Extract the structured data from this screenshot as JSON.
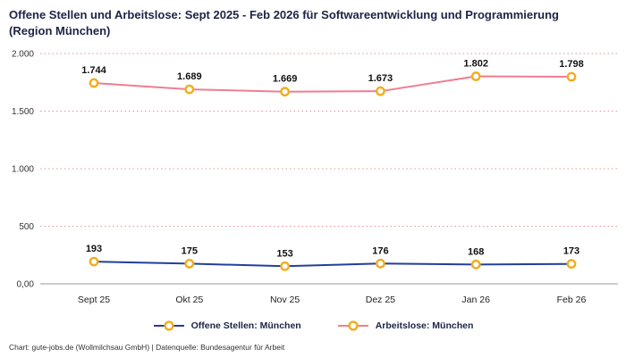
{
  "title": "Offene Stellen und Arbeitslose: Sept 2025 - Feb 2026 für Softwareentwicklung und Programmierung (Region München)",
  "footer": "Chart: gute-jobs.de (Wollmilchsau GmbH) | Datenquelle: Bundesagentur für Arbeit",
  "colors": {
    "title": "#1d2346",
    "marker": "#f0ad1e",
    "grid": "#e59595",
    "axis": "#999999",
    "tick_text": "#333333",
    "label_text": "#111111"
  },
  "chart_data": {
    "type": "line",
    "categories": [
      "Sept 25",
      "Okt 25",
      "Nov 25",
      "Dez 25",
      "Jan 26",
      "Feb 26"
    ],
    "series": [
      {
        "name": "Offene Stellen: München",
        "color": "#223f9a",
        "values": [
          193,
          175,
          153,
          176,
          168,
          173
        ],
        "labels": [
          "193",
          "175",
          "153",
          "176",
          "168",
          "173"
        ]
      },
      {
        "name": "Arbeitslose: München",
        "color": "#f07d92",
        "values": [
          1744,
          1689,
          1669,
          1673,
          1802,
          1798
        ],
        "labels": [
          "1.744",
          "1.689",
          "1.669",
          "1.673",
          "1.802",
          "1.798"
        ]
      }
    ],
    "ylim": [
      0,
      2000
    ],
    "yticks": [
      {
        "label": "0,00",
        "value": 0
      },
      {
        "label": "500",
        "value": 500
      },
      {
        "label": "1.000",
        "value": 1000
      },
      {
        "label": "1.500",
        "value": 1500
      },
      {
        "label": "2.000",
        "value": 2000
      }
    ],
    "grid": "dotted-horizontal",
    "legend_position": "bottom"
  }
}
